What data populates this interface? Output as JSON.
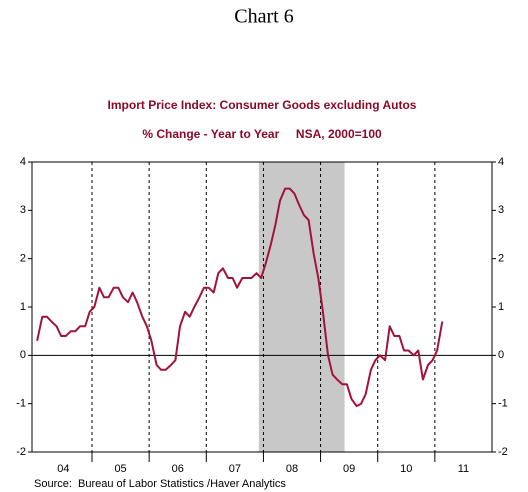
{
  "chart_data": {
    "type": "line",
    "title": "Chart 6",
    "subtitle": "Import Price Index: Consumer Goods excluding Autos",
    "subtitle2": "% Change - Year to Year     NSA, 2000=100",
    "source": "Source:  Bureau of Labor Statistics /Haver Analytics",
    "xlim": [
      2003.95,
      2012.0
    ],
    "xticks": [
      {
        "value": 2004.5,
        "label": "04"
      },
      {
        "value": 2005.5,
        "label": "05"
      },
      {
        "value": 2006.5,
        "label": "06"
      },
      {
        "value": 2007.5,
        "label": "07"
      },
      {
        "value": 2008.5,
        "label": "08"
      },
      {
        "value": 2009.5,
        "label": "09"
      },
      {
        "value": 2010.5,
        "label": "10"
      },
      {
        "value": 2011.5,
        "label": "11"
      }
    ],
    "xgrid": [
      2005,
      2006,
      2007,
      2008,
      2009,
      2010,
      2011
    ],
    "shade": [
      2007.92,
      2009.42
    ],
    "shade_color": "#c8c8c8",
    "ylim": [
      -2,
      4
    ],
    "yticks": [
      4,
      3,
      2,
      1,
      0,
      -1,
      -2
    ],
    "series": [
      {
        "name": "Import Price Index: Consumer Goods excluding Autos",
        "color": "#a3123a",
        "x": [
          2004.04,
          2004.13,
          2004.21,
          2004.29,
          2004.38,
          2004.46,
          2004.54,
          2004.63,
          2004.71,
          2004.79,
          2004.88,
          2004.96,
          2005.04,
          2005.13,
          2005.21,
          2005.29,
          2005.38,
          2005.46,
          2005.54,
          2005.63,
          2005.71,
          2005.79,
          2005.88,
          2005.96,
          2006.04,
          2006.13,
          2006.21,
          2006.29,
          2006.38,
          2006.46,
          2006.54,
          2006.63,
          2006.71,
          2006.79,
          2006.88,
          2006.96,
          2007.04,
          2007.13,
          2007.21,
          2007.29,
          2007.38,
          2007.46,
          2007.54,
          2007.63,
          2007.71,
          2007.79,
          2007.88,
          2007.96,
          2008.04,
          2008.13,
          2008.21,
          2008.29,
          2008.38,
          2008.46,
          2008.54,
          2008.63,
          2008.71,
          2008.79,
          2008.88,
          2008.96,
          2009.04,
          2009.13,
          2009.21,
          2009.29,
          2009.38,
          2009.46,
          2009.54,
          2009.63,
          2009.71,
          2009.79,
          2009.88,
          2009.96,
          2010.04,
          2010.13,
          2010.21,
          2010.29,
          2010.38,
          2010.46,
          2010.54,
          2010.63,
          2010.71,
          2010.79,
          2010.88,
          2010.96,
          2011.04,
          2011.13
        ],
        "values": [
          0.3,
          0.8,
          0.8,
          0.7,
          0.6,
          0.4,
          0.4,
          0.5,
          0.5,
          0.6,
          0.6,
          0.9,
          1.0,
          1.4,
          1.2,
          1.2,
          1.4,
          1.4,
          1.2,
          1.1,
          1.3,
          1.1,
          0.8,
          0.6,
          0.3,
          -0.2,
          -0.3,
          -0.3,
          -0.2,
          -0.1,
          0.6,
          0.9,
          0.8,
          1.0,
          1.2,
          1.4,
          1.4,
          1.3,
          1.7,
          1.8,
          1.6,
          1.6,
          1.4,
          1.6,
          1.6,
          1.6,
          1.7,
          1.6,
          1.9,
          2.3,
          2.7,
          3.2,
          3.45,
          3.45,
          3.35,
          3.1,
          2.9,
          2.8,
          2.1,
          1.6,
          0.9,
          0.0,
          -0.4,
          -0.5,
          -0.6,
          -0.6,
          -0.9,
          -1.05,
          -1.0,
          -0.8,
          -0.3,
          -0.1,
          0.0,
          -0.1,
          0.6,
          0.4,
          0.4,
          0.1,
          0.1,
          0.0,
          0.1,
          -0.5,
          -0.2,
          -0.1,
          0.1,
          0.7
        ]
      }
    ]
  }
}
